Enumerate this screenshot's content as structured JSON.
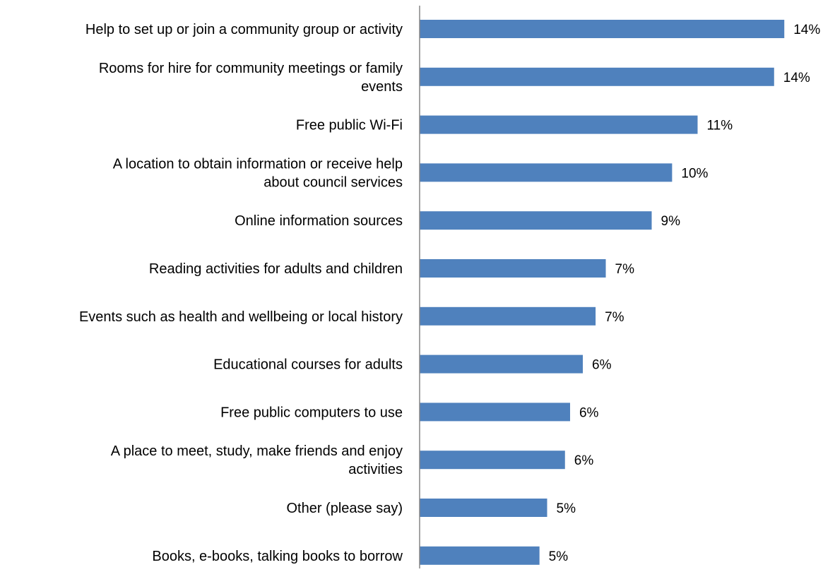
{
  "chart_data": {
    "type": "bar",
    "orientation": "horizontal",
    "categories": [
      [
        "Help to set up or join a community group or activity"
      ],
      [
        "Rooms for hire for community meetings or family",
        "events"
      ],
      [
        "Free public Wi-Fi"
      ],
      [
        "A location to obtain information or receive help",
        "about council services"
      ],
      [
        "Online information sources"
      ],
      [
        "Reading activities for adults and children"
      ],
      [
        "Events such as health and wellbeing or local history"
      ],
      [
        "Educational courses for adults"
      ],
      [
        "Free public computers to use"
      ],
      [
        "A place to meet, study, make friends and enjoy",
        "activities"
      ],
      [
        "Other (please say)"
      ],
      [
        "Books, e-books, talking books to borrow"
      ]
    ],
    "values": [
      14.3,
      13.9,
      10.9,
      9.9,
      9.1,
      7.3,
      6.9,
      6.4,
      5.9,
      5.7,
      5.0,
      4.7
    ],
    "value_labels": [
      "14%",
      "14%",
      "11%",
      "10%",
      "9%",
      "7%",
      "7%",
      "6%",
      "6%",
      "6%",
      "5%",
      "5%"
    ],
    "xlim": [
      0,
      16
    ],
    "grid": false,
    "legend": "none",
    "bar_color": "#4f81bd",
    "axis_color": "#868686"
  }
}
